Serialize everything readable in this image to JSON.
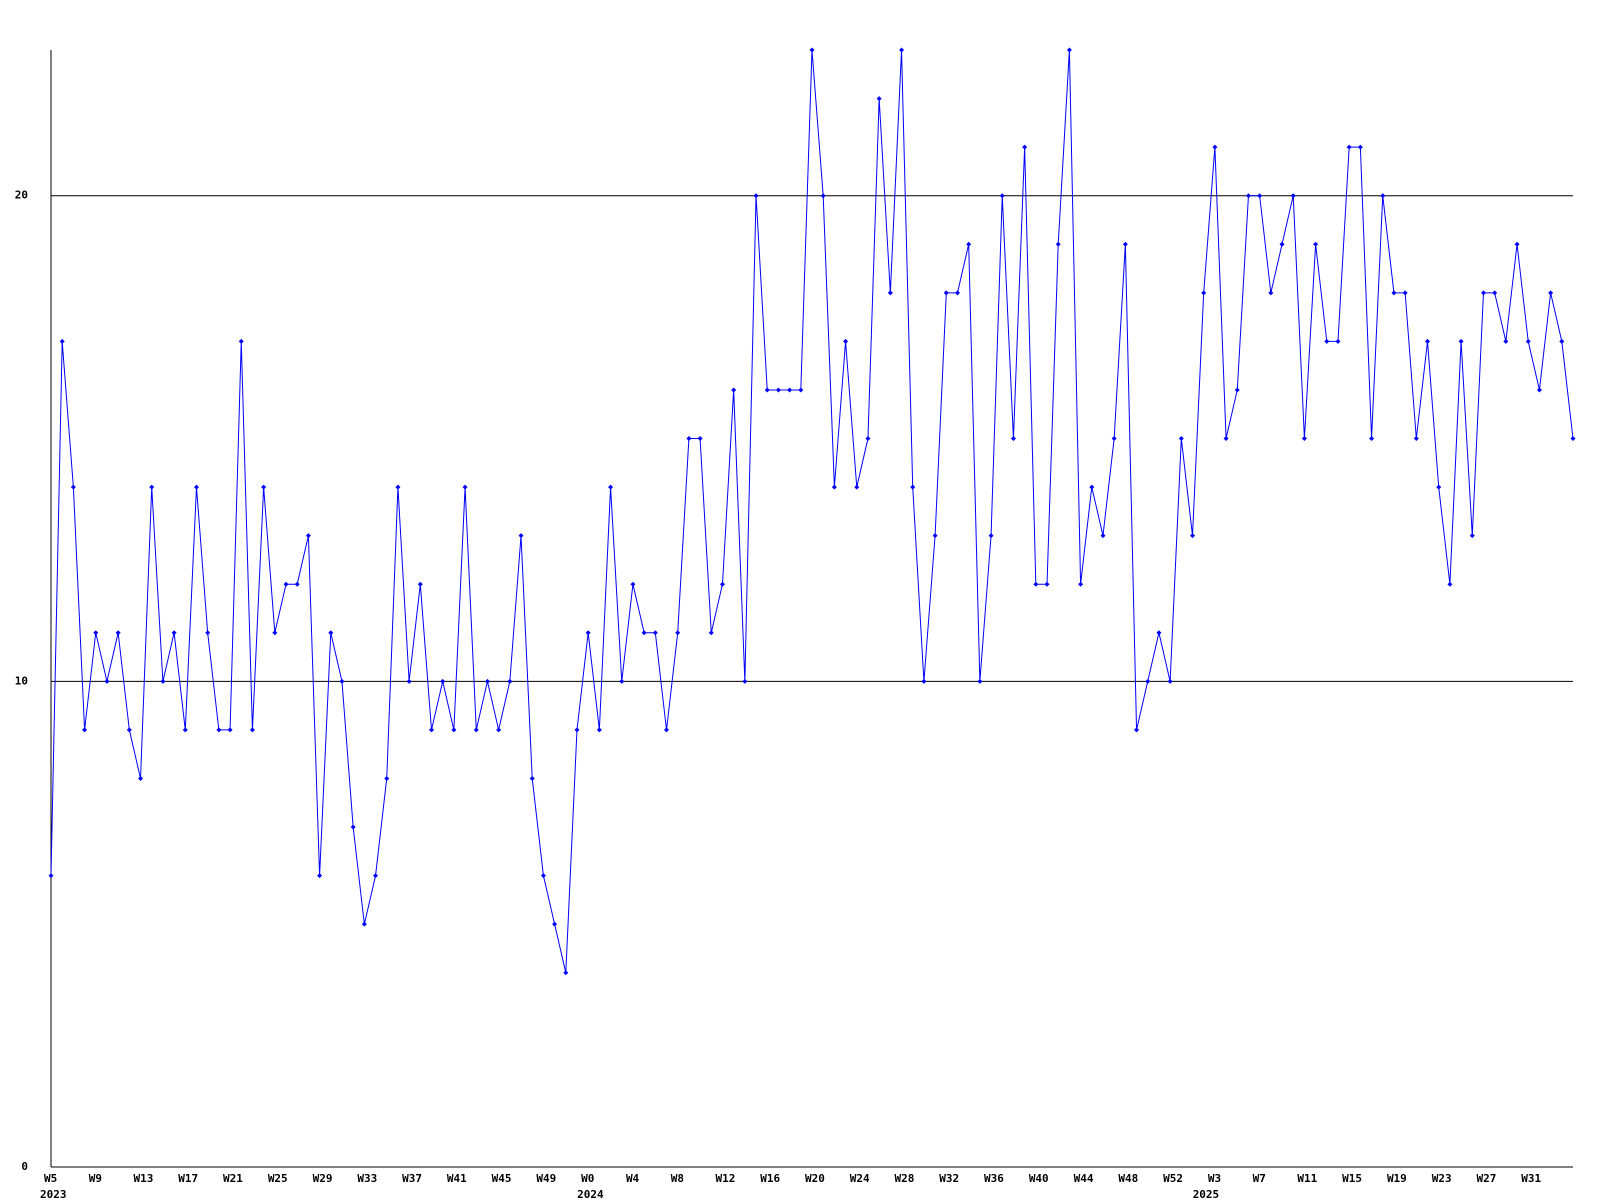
{
  "chart_data": {
    "type": "line",
    "color": "#0000ff",
    "categories": [
      "W5",
      null,
      null,
      null,
      "W9",
      null,
      null,
      null,
      "W13",
      null,
      null,
      null,
      "W17",
      null,
      null,
      null,
      "W21",
      null,
      null,
      null,
      "W25",
      null,
      null,
      null,
      "W29",
      null,
      null,
      null,
      "W33",
      null,
      null,
      null,
      "W37",
      null,
      null,
      null,
      "W41",
      null,
      null,
      null,
      "W45",
      null,
      null,
      null,
      "W49",
      null,
      null,
      null,
      "W0",
      null,
      null,
      null,
      "W4",
      null,
      null,
      null,
      "W8",
      null,
      null,
      null,
      "W12",
      null,
      null,
      null,
      "W16",
      null,
      null,
      null,
      "W20",
      null,
      null,
      null,
      "W24",
      null,
      null,
      null,
      "W28",
      null,
      null,
      null,
      "W32",
      null,
      null,
      null,
      "W36",
      null,
      null,
      null,
      "W40",
      null,
      null,
      null,
      "W44",
      null,
      null,
      null,
      "W48",
      null,
      null,
      null,
      "W52",
      null,
      null,
      null,
      "W3",
      null,
      null,
      null,
      "W7",
      null,
      null,
      null,
      "W11",
      null,
      null,
      null,
      "W15",
      null,
      null,
      null,
      "W19",
      null,
      null,
      null,
      "W23",
      null,
      null,
      null,
      "W27",
      null,
      null,
      null,
      "W31",
      null,
      null,
      null,
      null
    ],
    "years": [
      "2023",
      null,
      null,
      null,
      null,
      null,
      null,
      null,
      null,
      null,
      null,
      null,
      null,
      null,
      null,
      null,
      null,
      null,
      null,
      null,
      null,
      null,
      null,
      null,
      null,
      null,
      null,
      null,
      null,
      null,
      null,
      null,
      null,
      null,
      null,
      null,
      null,
      null,
      null,
      null,
      null,
      null,
      null,
      null,
      null,
      null,
      null,
      null,
      "2024",
      null,
      null,
      null,
      null,
      null,
      null,
      null,
      null,
      null,
      null,
      null,
      null,
      null,
      null,
      null,
      null,
      null,
      null,
      null,
      null,
      null,
      null,
      null,
      null,
      null,
      null,
      null,
      null,
      null,
      null,
      null,
      null,
      null,
      null,
      null,
      null,
      null,
      null,
      null,
      null,
      null,
      null,
      null,
      null,
      null,
      null,
      null,
      null,
      null,
      null,
      null,
      null,
      null,
      null,
      "2025",
      null,
      null,
      null,
      null,
      null,
      null,
      null,
      null,
      null,
      null,
      null,
      null,
      null,
      null,
      null,
      null,
      null,
      null,
      null,
      null,
      null,
      null,
      null,
      null,
      null,
      null,
      null,
      null,
      null,
      null,
      null,
      null,
      null,
      null
    ],
    "values": [
      6,
      17,
      14,
      9,
      11,
      10,
      11,
      9,
      8,
      14,
      10,
      11,
      9,
      14,
      11,
      9,
      9,
      17,
      9,
      14,
      11,
      12,
      12,
      13,
      6,
      11,
      10,
      7,
      5,
      6,
      8,
      14,
      10,
      12,
      9,
      10,
      9,
      14,
      9,
      10,
      9,
      10,
      13,
      8,
      6,
      5,
      4,
      9,
      11,
      9,
      14,
      10,
      12,
      11,
      11,
      9,
      11,
      15,
      15,
      11,
      12,
      16,
      10,
      20,
      16,
      16,
      16,
      16,
      23,
      20,
      14,
      17,
      14,
      15,
      22,
      18,
      23,
      14,
      10,
      13,
      18,
      18,
      19,
      10,
      13,
      20,
      15,
      21,
      12,
      12,
      19,
      23,
      12,
      14,
      13,
      15,
      19,
      9,
      10,
      11,
      10,
      15,
      13,
      18,
      21,
      15,
      16,
      20,
      20,
      18,
      19,
      20,
      15,
      19,
      17,
      17,
      21,
      21,
      15,
      20,
      18,
      18,
      15,
      17,
      14,
      12,
      17,
      13,
      18,
      18,
      17,
      19,
      17,
      16,
      18,
      17,
      15
    ],
    "ylim": [
      0,
      23
    ],
    "yticks": [
      0,
      10,
      20
    ],
    "grid": true
  }
}
